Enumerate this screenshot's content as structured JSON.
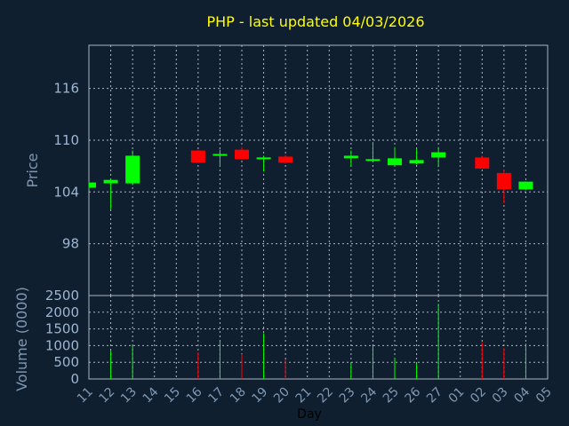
{
  "chart_data": {
    "type": "candlestick",
    "title": "PHP - last updated 04/03/2026",
    "price_panel": {
      "ylabel": "Price",
      "ylim": [
        92,
        121
      ],
      "yticks": [
        98,
        104,
        110,
        116
      ],
      "grid": true
    },
    "volume_panel": {
      "ylabel": "Volume (0000)",
      "ylim": [
        0,
        2500
      ],
      "yticks": [
        0,
        500,
        1000,
        1500,
        2000,
        2500
      ],
      "grid": true
    },
    "xlabel": "Day",
    "x_tick_labels": [
      "11",
      "12",
      "13",
      "14",
      "15",
      "16",
      "17",
      "18",
      "19",
      "20",
      "21",
      "22",
      "23",
      "24",
      "25",
      "26",
      "27",
      "01",
      "02",
      "03",
      "04",
      "05"
    ],
    "colors": {
      "up": "#00ff00",
      "down": "#ff0000",
      "background": "#0f1f30",
      "title": "#ffff00",
      "grid": "#aeb6c0"
    },
    "candles": [
      {
        "day": "11",
        "open": 104.5,
        "high": 105.2,
        "low": 104.3,
        "close": 105.1
      },
      {
        "day": "12",
        "open": 105.0,
        "high": 105.5,
        "low": 102.0,
        "close": 105.4
      },
      {
        "day": "13",
        "open": 105.0,
        "high": 108.8,
        "low": 104.8,
        "close": 108.2
      },
      {
        "day": "16",
        "open": 108.8,
        "high": 108.9,
        "low": 107.4,
        "close": 107.4
      },
      {
        "day": "17",
        "open": 108.2,
        "high": 108.9,
        "low": 106.9,
        "close": 108.4
      },
      {
        "day": "18",
        "open": 108.9,
        "high": 109.2,
        "low": 107.7,
        "close": 107.8
      },
      {
        "day": "19",
        "open": 107.8,
        "high": 108.2,
        "low": 106.4,
        "close": 108.0
      },
      {
        "day": "20",
        "open": 108.1,
        "high": 108.3,
        "low": 107.3,
        "close": 107.4
      },
      {
        "day": "23",
        "open": 107.9,
        "high": 108.8,
        "low": 107.0,
        "close": 108.2
      },
      {
        "day": "24",
        "open": 107.6,
        "high": 109.8,
        "low": 107.5,
        "close": 107.8
      },
      {
        "day": "25",
        "open": 107.1,
        "high": 109.2,
        "low": 107.0,
        "close": 107.9
      },
      {
        "day": "26",
        "open": 107.3,
        "high": 109.0,
        "low": 107.2,
        "close": 107.7
      },
      {
        "day": "27",
        "open": 108.0,
        "high": 109.2,
        "low": 106.9,
        "close": 108.6
      },
      {
        "day": "02",
        "open": 108.0,
        "high": 108.2,
        "low": 106.7,
        "close": 106.7
      },
      {
        "day": "03",
        "open": 106.2,
        "high": 106.6,
        "low": 102.7,
        "close": 104.3
      },
      {
        "day": "04",
        "open": 104.3,
        "high": 105.2,
        "low": 104.2,
        "close": 105.2
      }
    ],
    "volumes": [
      {
        "day": "12",
        "value": 850,
        "direction": "up"
      },
      {
        "day": "13",
        "value": 1020,
        "direction": "up"
      },
      {
        "day": "16",
        "value": 800,
        "direction": "down"
      },
      {
        "day": "17",
        "value": 1130,
        "direction": "up"
      },
      {
        "day": "18",
        "value": 740,
        "direction": "down"
      },
      {
        "day": "19",
        "value": 1370,
        "direction": "up"
      },
      {
        "day": "20",
        "value": 580,
        "direction": "down"
      },
      {
        "day": "23",
        "value": 460,
        "direction": "up"
      },
      {
        "day": "24",
        "value": 990,
        "direction": "up"
      },
      {
        "day": "25",
        "value": 640,
        "direction": "up"
      },
      {
        "day": "26",
        "value": 480,
        "direction": "up"
      },
      {
        "day": "27",
        "value": 2250,
        "direction": "up"
      },
      {
        "day": "02",
        "value": 1100,
        "direction": "down"
      },
      {
        "day": "03",
        "value": 920,
        "direction": "down"
      },
      {
        "day": "04",
        "value": 1060,
        "direction": "up"
      }
    ]
  }
}
